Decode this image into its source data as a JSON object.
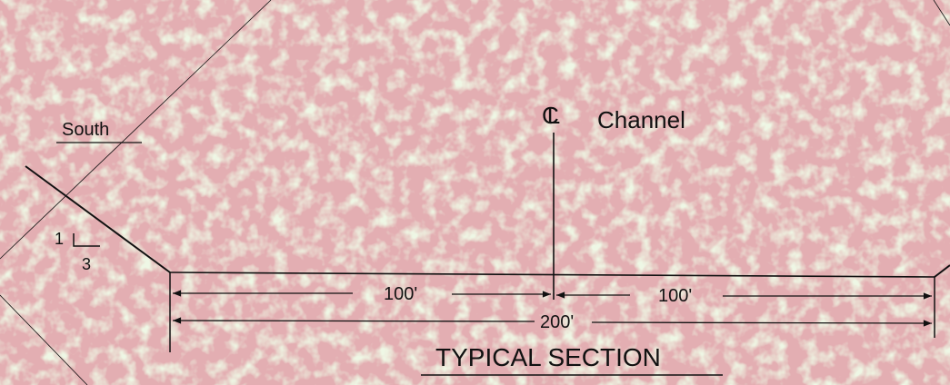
{
  "background_color": "#e3aeb2",
  "line_color": "#111111",
  "labels": {
    "south": "South",
    "slope_rise": "1",
    "slope_run": "3",
    "centerline_symbol": "CL",
    "centerline_text": "Channel",
    "left_half_width": "100'",
    "right_half_width": "100'",
    "total_width": "200'",
    "title": "TYPICAL SECTION"
  }
}
